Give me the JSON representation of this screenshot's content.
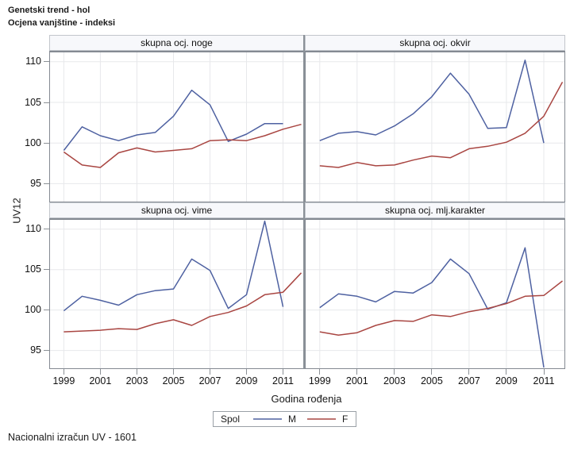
{
  "title": {
    "line1": "Genetski trend - hol",
    "line2": "Ocjena vanjštine - indeksi"
  },
  "footnote": "Nacionalni izračun UV - 1601",
  "axes": {
    "x_label": "Godina rođenja",
    "y_label": "UV12",
    "x_ticks": [
      1999,
      2001,
      2003,
      2005,
      2007,
      2009,
      2011
    ],
    "y_ticks": [
      95,
      100,
      105,
      110
    ],
    "xlim": [
      1998.2,
      2012.15
    ],
    "ylim": [
      92.7,
      111.35
    ],
    "grid": true
  },
  "legend": {
    "title": "Spol",
    "position": "bottom",
    "entries": [
      {
        "label": "M",
        "color": "#4e61a1"
      },
      {
        "label": "F",
        "color": "#a94642"
      }
    ]
  },
  "colors": {
    "male_line": "#4e61a1",
    "female_line": "#a94642",
    "gridline": "#e7e8eb",
    "wall_border": "#848a92",
    "header_bg": "#f7f8fb",
    "header_border": "#c2c6cc",
    "tick": "#8c9196",
    "divider": "#8b9198"
  },
  "chart_data": [
    {
      "type": "line",
      "title": "skupna ocj. noge",
      "x": [
        1999,
        2000,
        2001,
        2002,
        2003,
        2004,
        2005,
        2006,
        2007,
        2008,
        2009,
        2010,
        2011,
        2012
      ],
      "series": [
        {
          "name": "M",
          "values": [
            99.1,
            102.0,
            100.9,
            100.3,
            101.0,
            101.3,
            103.3,
            106.5,
            104.7,
            100.2,
            101.1,
            102.4,
            102.4,
            null
          ]
        },
        {
          "name": "F",
          "values": [
            98.9,
            97.3,
            97.0,
            98.8,
            99.4,
            98.9,
            99.1,
            99.3,
            100.3,
            100.4,
            100.3,
            100.9,
            101.7,
            102.3
          ]
        }
      ]
    },
    {
      "type": "line",
      "title": "skupna ocj. okvir",
      "x": [
        1999,
        2000,
        2001,
        2002,
        2003,
        2004,
        2005,
        2006,
        2007,
        2008,
        2009,
        2010,
        2011,
        2012
      ],
      "series": [
        {
          "name": "M",
          "values": [
            100.3,
            101.2,
            101.4,
            101.0,
            102.1,
            103.6,
            105.7,
            108.6,
            106.0,
            101.8,
            101.9,
            110.2,
            100.0,
            null
          ]
        },
        {
          "name": "F",
          "values": [
            97.2,
            97.0,
            97.6,
            97.2,
            97.3,
            97.9,
            98.4,
            98.2,
            99.3,
            99.6,
            100.1,
            101.2,
            103.3,
            107.5
          ]
        }
      ]
    },
    {
      "type": "line",
      "title": "skupna ocj. vime",
      "x": [
        1999,
        2000,
        2001,
        2002,
        2003,
        2004,
        2005,
        2006,
        2007,
        2008,
        2009,
        2010,
        2011,
        2012
      ],
      "series": [
        {
          "name": "M",
          "values": [
            99.9,
            101.7,
            101.2,
            100.6,
            101.9,
            102.4,
            102.6,
            106.3,
            104.9,
            100.2,
            101.9,
            111.0,
            100.4,
            null
          ]
        },
        {
          "name": "F",
          "values": [
            97.3,
            97.4,
            97.5,
            97.7,
            97.6,
            98.3,
            98.8,
            98.1,
            99.2,
            99.7,
            100.5,
            101.9,
            102.2,
            104.6
          ]
        }
      ]
    },
    {
      "type": "line",
      "title": "skupna ocj. mlj.karakter",
      "x": [
        1999,
        2000,
        2001,
        2002,
        2003,
        2004,
        2005,
        2006,
        2007,
        2008,
        2009,
        2010,
        2011,
        2012
      ],
      "series": [
        {
          "name": "M",
          "values": [
            100.3,
            102.0,
            101.7,
            101.0,
            102.3,
            102.1,
            103.4,
            106.3,
            104.5,
            100.1,
            100.9,
            107.7,
            92.9,
            null
          ]
        },
        {
          "name": "F",
          "values": [
            97.3,
            96.9,
            97.2,
            98.1,
            98.7,
            98.6,
            99.4,
            99.2,
            99.8,
            100.2,
            100.8,
            101.7,
            101.8,
            103.6
          ]
        }
      ]
    }
  ]
}
